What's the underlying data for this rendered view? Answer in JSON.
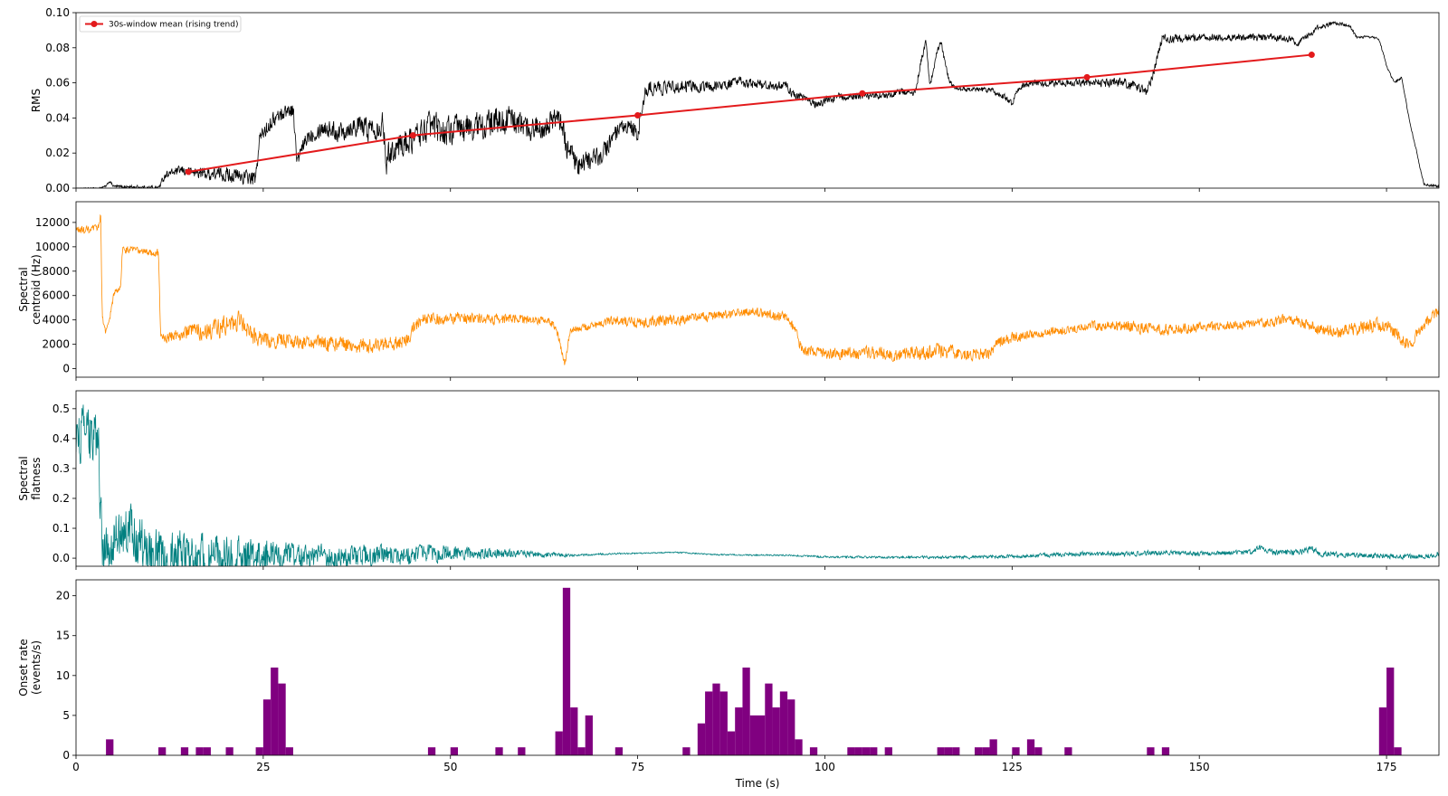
{
  "chart_data": [
    {
      "type": "line",
      "xlabel": "",
      "ylabel": "RMS",
      "xlim": [
        0,
        182
      ],
      "ylim": [
        0,
        0.1
      ],
      "yticks": [
        0.0,
        0.02,
        0.04,
        0.06,
        0.08,
        0.1
      ],
      "ytick_labels": [
        "0.00",
        "0.02",
        "0.04",
        "0.06",
        "0.08",
        "0.10"
      ],
      "legend": {
        "position": "top-left",
        "entries": [
          "30s-window mean (rising trend)"
        ]
      },
      "series": [
        {
          "kind": "signal",
          "color": "#000000",
          "noise": [
            0.0,
            0.002,
            0.006,
            0.006,
            0.01,
            0.012,
            0.01,
            0.008,
            0.005,
            0.004,
            0.003,
            0.003,
            0.002,
            0.003,
            0.004,
            0.003,
            0.003,
            0.001,
            0.001
          ],
          "x": [
            0,
            3,
            4,
            4.5,
            5,
            11,
            12,
            14,
            16,
            18,
            20,
            23,
            24,
            24.5,
            26,
            28,
            29,
            29.5,
            30,
            31,
            33,
            35,
            37,
            39,
            41,
            41.5,
            42,
            45,
            47,
            50,
            52,
            55,
            58,
            60,
            62,
            64,
            65,
            65.5,
            66,
            67,
            68,
            70,
            72,
            74,
            75,
            76,
            77,
            80,
            85,
            88,
            95,
            96,
            97,
            99,
            100,
            102,
            105,
            108,
            110,
            112,
            113,
            113.5,
            114,
            115,
            115.5,
            116.5,
            117,
            118,
            120,
            122,
            124,
            125,
            126,
            128,
            130,
            135,
            140,
            143,
            143.5,
            145,
            150,
            155,
            160,
            162,
            163,
            165,
            166,
            168,
            170,
            171,
            173,
            174,
            175,
            176,
            177,
            178,
            180,
            182
          ],
          "y": [
            0,
            0,
            0.001,
            0.004,
            0.001,
            0,
            0.008,
            0.01,
            0.009,
            0.008,
            0.008,
            0.006,
            0.005,
            0.028,
            0.038,
            0.044,
            0.045,
            0.015,
            0.02,
            0.03,
            0.035,
            0.032,
            0.036,
            0.034,
            0.037,
            0.015,
            0.022,
            0.028,
            0.035,
            0.032,
            0.034,
            0.036,
            0.04,
            0.034,
            0.035,
            0.04,
            0.035,
            0.022,
            0.025,
            0.01,
            0.015,
            0.018,
            0.03,
            0.035,
            0.03,
            0.055,
            0.057,
            0.058,
            0.058,
            0.06,
            0.058,
            0.052,
            0.052,
            0.047,
            0.05,
            0.052,
            0.052,
            0.053,
            0.055,
            0.054,
            0.075,
            0.083,
            0.058,
            0.078,
            0.083,
            0.062,
            0.058,
            0.057,
            0.056,
            0.056,
            0.052,
            0.048,
            0.058,
            0.06,
            0.06,
            0.06,
            0.06,
            0.055,
            0.06,
            0.085,
            0.086,
            0.086,
            0.086,
            0.085,
            0.082,
            0.088,
            0.092,
            0.094,
            0.093,
            0.086,
            0.086,
            0.085,
            0.07,
            0.06,
            0.063,
            0.04,
            0.002,
            0.001
          ]
        },
        {
          "kind": "trend",
          "name": "30s-window mean (rising trend)",
          "color": "#e31a1c",
          "x": [
            15,
            45,
            75,
            105,
            135,
            165
          ],
          "y": [
            0.0093,
            0.0301,
            0.0415,
            0.054,
            0.0632,
            0.076
          ]
        }
      ]
    },
    {
      "type": "line",
      "xlabel": "",
      "ylabel": "Spectral\ncentroid (Hz)",
      "xlim": [
        0,
        182
      ],
      "ylim": [
        -700,
        13700
      ],
      "yticks": [
        0,
        2000,
        4000,
        6000,
        8000,
        10000,
        12000
      ],
      "ytick_labels": [
        "0",
        "2000",
        "4000",
        "6000",
        "8000",
        "10000",
        "12000"
      ],
      "series": [
        {
          "kind": "signal",
          "color": "#ff8c00",
          "noise": [
            500,
            400,
            1200,
            800,
            900,
            700,
            600,
            400,
            700,
            500,
            600,
            700,
            900,
            600,
            500,
            700,
            500,
            600,
            800,
            700
          ],
          "x": [
            0,
            2,
            3,
            3.3,
            3.5,
            4,
            4.5,
            5,
            6,
            6.2,
            7,
            9,
            11,
            11.3,
            12,
            15,
            18,
            20,
            22,
            24,
            30,
            35,
            40,
            42,
            44,
            45,
            46,
            50,
            55,
            60,
            63,
            64,
            65,
            65.3,
            66,
            68,
            70,
            72,
            75,
            80,
            85,
            90,
            95,
            96,
            97,
            100,
            105,
            110,
            115,
            120,
            122,
            123,
            125,
            130,
            135,
            140,
            145,
            150,
            155,
            160,
            162,
            165,
            168,
            170,
            175,
            177,
            178,
            180,
            182
          ],
          "y": [
            11400,
            11300,
            11600,
            12800,
            4200,
            3000,
            4000,
            6000,
            6800,
            9700,
            9800,
            9600,
            9500,
            2700,
            2500,
            3000,
            3200,
            3500,
            4000,
            2400,
            2200,
            2000,
            1900,
            2000,
            2300,
            3200,
            4000,
            4200,
            4100,
            4000,
            4000,
            3500,
            1200,
            300,
            3200,
            3400,
            3600,
            4000,
            3800,
            4000,
            4300,
            4700,
            4200,
            3000,
            1500,
            1200,
            1300,
            1200,
            1400,
            1200,
            1300,
            2000,
            2600,
            3000,
            3500,
            3500,
            3200,
            3400,
            3600,
            3800,
            4200,
            3500,
            3000,
            3200,
            3600,
            2500,
            2000,
            3500,
            4800
          ]
        }
      ]
    },
    {
      "type": "line",
      "xlabel": "",
      "ylabel": "Spectral\nflatness",
      "xlim": [
        0,
        182
      ],
      "ylim": [
        -0.027,
        0.56
      ],
      "yticks": [
        0.0,
        0.1,
        0.2,
        0.3,
        0.4,
        0.5
      ],
      "ytick_labels": [
        "0.0",
        "0.1",
        "0.2",
        "0.3",
        "0.4",
        "0.5"
      ],
      "series": [
        {
          "kind": "signal",
          "color": "#008080",
          "noise": [
            0.12,
            0.12,
            0.1,
            0.06,
            0.05,
            0.04,
            0.02,
            0.005,
            0.003,
            0.003,
            0.004,
            0.005,
            0.006,
            0.008,
            0.01,
            0.012,
            0.01,
            0.015,
            0.012,
            0.012
          ],
          "x": [
            0,
            1,
            2,
            3,
            3.2,
            3.5,
            4,
            5,
            6,
            7,
            8,
            9,
            10,
            11,
            12,
            20,
            30,
            40,
            45,
            46,
            50,
            60,
            64,
            66,
            70,
            75,
            80,
            85,
            90,
            95,
            100,
            110,
            120,
            124,
            130,
            135,
            140,
            145,
            150,
            157,
            158,
            160,
            164,
            165,
            166,
            170,
            175,
            180,
            182
          ],
          "y": [
            0.4,
            0.42,
            0.4,
            0.38,
            0.2,
            0.05,
            0.02,
            0.06,
            0.08,
            0.1,
            0.07,
            0.05,
            0.03,
            0.01,
            0.005,
            0.005,
            0.005,
            0.005,
            0.008,
            0.015,
            0.016,
            0.015,
            0.012,
            0.008,
            0.014,
            0.016,
            0.02,
            0.012,
            0.01,
            0.01,
            0.004,
            0.003,
            0.003,
            0.006,
            0.01,
            0.015,
            0.015,
            0.018,
            0.015,
            0.02,
            0.035,
            0.018,
            0.02,
            0.035,
            0.015,
            0.01,
            0.008,
            0.006,
            0.015
          ]
        }
      ]
    },
    {
      "type": "bar",
      "xlabel": "Time (s)",
      "ylabel": "Onset rate\n(events/s)",
      "xlim": [
        0,
        182
      ],
      "ylim": [
        0,
        22
      ],
      "xticks": [
        0,
        25,
        50,
        75,
        100,
        125,
        150,
        175
      ],
      "xtick_labels": [
        "0",
        "25",
        "50",
        "75",
        "100",
        "125",
        "150",
        "175"
      ],
      "yticks": [
        0,
        5,
        10,
        15,
        20
      ],
      "ytick_labels": [
        "0",
        "5",
        "10",
        "15",
        "20"
      ],
      "bar_width": 1,
      "color": "#800080",
      "bars": [
        [
          4,
          2
        ],
        [
          11,
          1
        ],
        [
          14,
          1
        ],
        [
          16,
          1
        ],
        [
          17,
          1
        ],
        [
          20,
          1
        ],
        [
          24,
          1
        ],
        [
          25,
          7
        ],
        [
          26,
          11
        ],
        [
          27,
          9
        ],
        [
          28,
          1
        ],
        [
          47,
          1
        ],
        [
          50,
          1
        ],
        [
          56,
          1
        ],
        [
          59,
          1
        ],
        [
          64,
          3
        ],
        [
          65,
          21
        ],
        [
          66,
          6
        ],
        [
          67,
          1
        ],
        [
          68,
          5
        ],
        [
          72,
          1
        ],
        [
          81,
          1
        ],
        [
          83,
          4
        ],
        [
          84,
          8
        ],
        [
          85,
          9
        ],
        [
          86,
          8
        ],
        [
          87,
          3
        ],
        [
          88,
          6
        ],
        [
          89,
          11
        ],
        [
          90,
          5
        ],
        [
          91,
          5
        ],
        [
          92,
          9
        ],
        [
          93,
          6
        ],
        [
          94,
          8
        ],
        [
          95,
          7
        ],
        [
          96,
          2
        ],
        [
          98,
          1
        ],
        [
          103,
          1
        ],
        [
          104,
          1
        ],
        [
          105,
          1
        ],
        [
          106,
          1
        ],
        [
          108,
          1
        ],
        [
          115,
          1
        ],
        [
          116,
          1
        ],
        [
          117,
          1
        ],
        [
          120,
          1
        ],
        [
          121,
          1
        ],
        [
          122,
          2
        ],
        [
          125,
          1
        ],
        [
          127,
          2
        ],
        [
          128,
          1
        ],
        [
          132,
          1
        ],
        [
          143,
          1
        ],
        [
          145,
          1
        ],
        [
          174,
          6
        ],
        [
          175,
          11
        ],
        [
          176,
          1
        ]
      ]
    }
  ]
}
